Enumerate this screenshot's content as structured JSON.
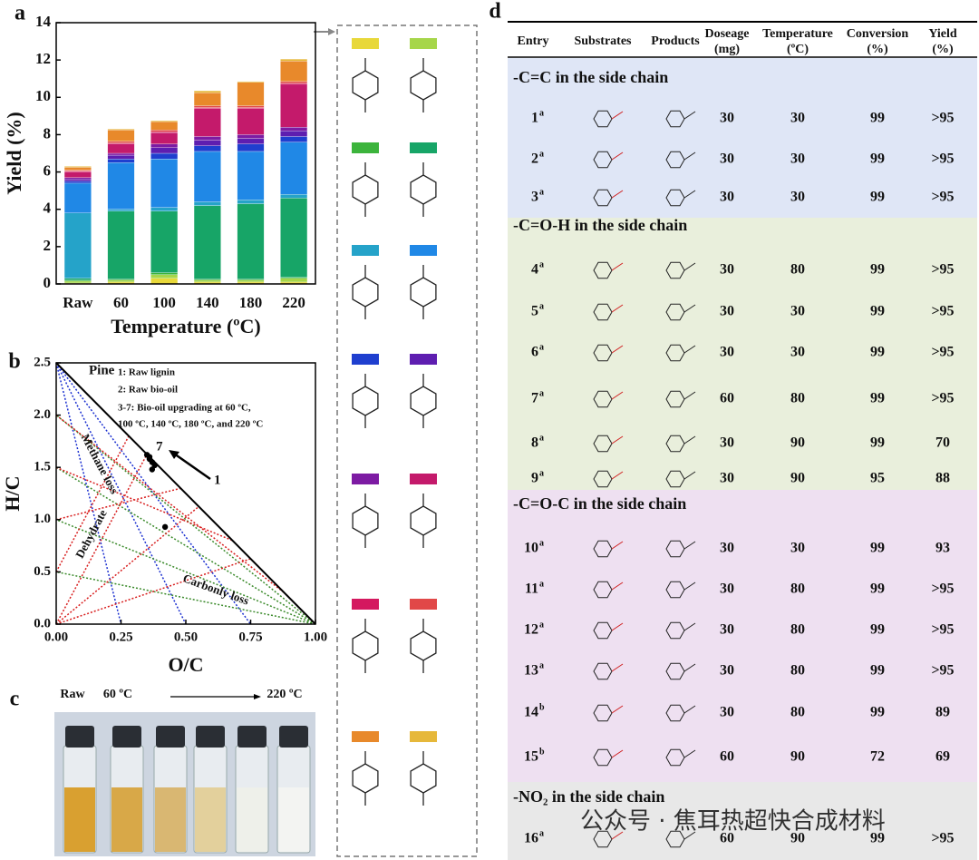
{
  "panel_labels": [
    "a",
    "b",
    "c",
    "d"
  ],
  "chart_data": [
    {
      "type": "bar",
      "stacked": true,
      "ylabel": "Yield (%)",
      "xlabel": "Temperature (ºC)",
      "categories": [
        "Raw",
        "60",
        "100",
        "140",
        "180",
        "220"
      ],
      "ylim": [
        0,
        14
      ],
      "yticks": [
        0,
        2,
        4,
        6,
        8,
        10,
        12,
        14
      ],
      "series": [
        {
          "color": "#e8d83a",
          "values": [
            0.05,
            0.1,
            0.3,
            0.1,
            0.1,
            0.1
          ]
        },
        {
          "color": "#a6d64a",
          "values": [
            0.1,
            0.1,
            0.2,
            0.1,
            0.1,
            0.2
          ]
        },
        {
          "color": "#3cb43c",
          "values": [
            0.05,
            0.05,
            0.1,
            0.05,
            0.05,
            0.05
          ]
        },
        {
          "color": "#17a567",
          "values": [
            0.1,
            3.65,
            3.3,
            3.95,
            4.05,
            4.25
          ]
        },
        {
          "color": "#25a3c9",
          "values": [
            3.5,
            0.1,
            0.2,
            0.2,
            0.2,
            0.2
          ]
        },
        {
          "color": "#2088e6",
          "values": [
            1.6,
            2.5,
            2.6,
            2.7,
            2.6,
            2.8
          ]
        },
        {
          "color": "#1f3fcf",
          "values": [
            0.1,
            0.2,
            0.3,
            0.3,
            0.4,
            0.3
          ]
        },
        {
          "color": "#5e1eb0",
          "values": [
            0.1,
            0.2,
            0.3,
            0.3,
            0.3,
            0.3
          ]
        },
        {
          "color": "#7d1ba3",
          "values": [
            0.1,
            0.1,
            0.2,
            0.2,
            0.2,
            0.2
          ]
        },
        {
          "color": "#c41a6b",
          "values": [
            0.3,
            0.5,
            0.6,
            1.5,
            1.4,
            2.3
          ]
        },
        {
          "color": "#d4185f",
          "values": [
            0.05,
            0.05,
            0.05,
            0.05,
            0.05,
            0.05
          ]
        },
        {
          "color": "#e14848",
          "values": [
            0.05,
            0.1,
            0.1,
            0.1,
            0.1,
            0.1
          ]
        },
        {
          "color": "#e8892b",
          "values": [
            0.15,
            0.6,
            0.45,
            0.7,
            1.25,
            1.1
          ]
        },
        {
          "color": "#e6b83a",
          "values": [
            0.05,
            0.05,
            0.05,
            0.1,
            0.05,
            0.1
          ]
        }
      ]
    },
    {
      "type": "scatter",
      "xlabel": "O/C",
      "ylabel": "H/C",
      "xlim": [
        0,
        1
      ],
      "ylim": [
        0,
        2.5
      ],
      "xticks": [
        {
          "value": 0,
          "label": "0.00"
        },
        {
          "value": 0.25,
          "label": "0.25"
        },
        {
          "value": 0.5,
          "label": "0.50"
        },
        {
          "value": 0.75,
          "label": "0.75"
        },
        {
          "value": 1,
          "label": "1.00"
        }
      ],
      "yticks": [
        {
          "value": 0,
          "label": "0.0"
        },
        {
          "value": 0.5,
          "label": "0.5"
        },
        {
          "value": 1,
          "label": "1.0"
        },
        {
          "value": 1.5,
          "label": "1.5"
        },
        {
          "value": 2,
          "label": "2.0"
        },
        {
          "value": 2.5,
          "label": "2.5"
        }
      ],
      "x": [
        0.42,
        0.37,
        0.38,
        0.37,
        0.36,
        0.36,
        0.35
      ],
      "y": [
        0.93,
        1.48,
        1.52,
        1.55,
        1.58,
        1.6,
        1.62
      ],
      "color": "#000000",
      "annotations": [
        "Pine",
        "1: Raw lignin",
        "2: Raw bio-oil",
        "3-7: Bio-oil upgrading at 60 ºC,",
        "100 ºC, 140 ºC, 180 ºC, and 220 ºC",
        "7",
        "1",
        "Methane loss",
        "Dehydrate",
        "Carbonly loss"
      ]
    }
  ],
  "photo": {
    "labels": [
      "Raw",
      "60 ºC",
      "220 ºC"
    ]
  },
  "table": {
    "columns": [
      [
        "Entry"
      ],
      [
        "Substrates"
      ],
      [
        "Products"
      ],
      [
        "Doseage",
        "(mg)"
      ],
      [
        "Temperature",
        "(ºC)"
      ],
      [
        "Conversion",
        "(%)"
      ],
      [
        "Yield",
        "(%)"
      ]
    ],
    "sections": [
      {
        "title": "-C=C in the side chain",
        "rows": [
          {
            "entry": "1",
            "note": "a",
            "dosage": 30,
            "temperature": 30,
            "conversion": 99,
            "yield": ">95"
          },
          {
            "entry": "2",
            "note": "a",
            "dosage": 30,
            "temperature": 30,
            "conversion": 99,
            "yield": ">95"
          },
          {
            "entry": "3",
            "note": "a",
            "dosage": 30,
            "temperature": 30,
            "conversion": 99,
            "yield": ">95"
          }
        ]
      },
      {
        "title": "-C=O-H in the side chain",
        "rows": [
          {
            "entry": "4",
            "note": "a",
            "dosage": 30,
            "temperature": 80,
            "conversion": 99,
            "yield": ">95"
          },
          {
            "entry": "5",
            "note": "a",
            "dosage": 30,
            "temperature": 30,
            "conversion": 99,
            "yield": ">95"
          },
          {
            "entry": "6",
            "note": "a",
            "dosage": 30,
            "temperature": 30,
            "conversion": 99,
            "yield": ">95"
          },
          {
            "entry": "7",
            "note": "a",
            "dosage": 60,
            "temperature": 80,
            "conversion": 99,
            "yield": ">95"
          },
          {
            "entry": "8",
            "note": "a",
            "dosage": 30,
            "temperature": 90,
            "conversion": 99,
            "yield": 70
          },
          {
            "entry": "9",
            "note": "a",
            "dosage": 30,
            "temperature": 90,
            "conversion": 95,
            "yield": 88
          }
        ]
      },
      {
        "title": "-C=O-C in the side chain",
        "rows": [
          {
            "entry": "10",
            "note": "a",
            "dosage": 30,
            "temperature": 30,
            "conversion": 99,
            "yield": 93
          },
          {
            "entry": "11",
            "note": "a",
            "dosage": 30,
            "temperature": 80,
            "conversion": 99,
            "yield": ">95"
          },
          {
            "entry": "12",
            "note": "a",
            "dosage": 30,
            "temperature": 80,
            "conversion": 99,
            "yield": ">95"
          },
          {
            "entry": "13",
            "note": "a",
            "dosage": 30,
            "temperature": 80,
            "conversion": 99,
            "yield": ">95"
          },
          {
            "entry": "14",
            "note": "b",
            "dosage": 30,
            "temperature": 80,
            "conversion": 99,
            "yield": 89
          },
          {
            "entry": "15",
            "note": "b",
            "dosage": 60,
            "temperature": 90,
            "conversion": 72,
            "yield": 69
          }
        ]
      },
      {
        "title": "-NO₂ in the side chain",
        "rows": [
          {
            "entry": "16",
            "note": "a",
            "dosage": 60,
            "temperature": 90,
            "conversion": 99,
            "yield": ">95"
          }
        ]
      }
    ]
  },
  "watermark": "公众号 · 焦耳热超快合成材料"
}
